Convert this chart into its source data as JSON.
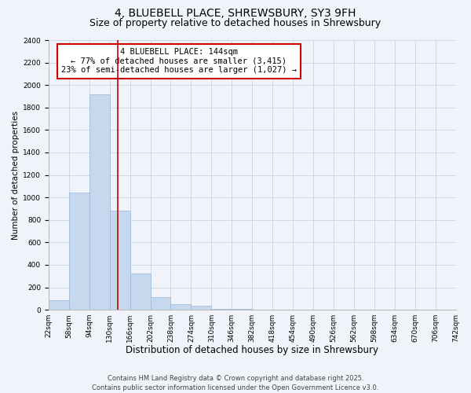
{
  "title": "4, BLUEBELL PLACE, SHREWSBURY, SY3 9FH",
  "subtitle": "Size of property relative to detached houses in Shrewsbury",
  "xlabel": "Distribution of detached houses by size in Shrewsbury",
  "ylabel": "Number of detached properties",
  "bar_edges": [
    22,
    58,
    94,
    130,
    166,
    202,
    238,
    274,
    310,
    346,
    382,
    418,
    454,
    490,
    526,
    562,
    598,
    634,
    670,
    706,
    742
  ],
  "bar_heights": [
    85,
    1040,
    1920,
    880,
    320,
    115,
    50,
    35,
    8,
    5,
    2,
    1,
    0,
    0,
    0,
    0,
    0,
    0,
    0,
    0
  ],
  "bar_color": "#c5d8ee",
  "bar_edge_color": "#9ab8d8",
  "bar_linewidth": 0.5,
  "grid_color": "#d0d8e8",
  "bg_color": "#f0f4fa",
  "vline_x": 144,
  "vline_color": "#cc0000",
  "vline_linewidth": 1.2,
  "annotation_line1": "4 BLUEBELL PLACE: 144sqm",
  "annotation_line2": "← 77% of detached houses are smaller (3,415)",
  "annotation_line3": "23% of semi-detached houses are larger (1,027) →",
  "xlim_min": 22,
  "xlim_max": 742,
  "ylim_min": 0,
  "ylim_max": 2400,
  "yticks": [
    0,
    200,
    400,
    600,
    800,
    1000,
    1200,
    1400,
    1600,
    1800,
    2000,
    2200,
    2400
  ],
  "xtick_labels": [
    "22sqm",
    "58sqm",
    "94sqm",
    "130sqm",
    "166sqm",
    "202sqm",
    "238sqm",
    "274sqm",
    "310sqm",
    "346sqm",
    "382sqm",
    "418sqm",
    "454sqm",
    "490sqm",
    "526sqm",
    "562sqm",
    "598sqm",
    "634sqm",
    "670sqm",
    "706sqm",
    "742sqm"
  ],
  "xtick_positions": [
    22,
    58,
    94,
    130,
    166,
    202,
    238,
    274,
    310,
    346,
    382,
    418,
    454,
    490,
    526,
    562,
    598,
    634,
    670,
    706,
    742
  ],
  "footnote": "Contains HM Land Registry data © Crown copyright and database right 2025.\nContains public sector information licensed under the Open Government Licence v3.0.",
  "title_fontsize": 10,
  "subtitle_fontsize": 9,
  "xlabel_fontsize": 8.5,
  "ylabel_fontsize": 7.5,
  "tick_fontsize": 6.5,
  "annotation_fontsize": 7.5,
  "footnote_fontsize": 6
}
